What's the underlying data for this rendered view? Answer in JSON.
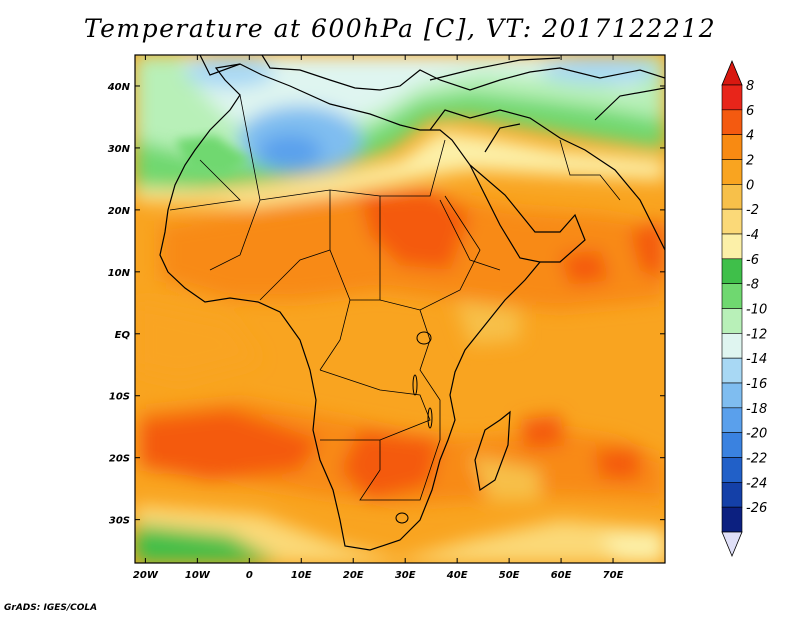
{
  "title": "Temperature at 600hPa [C], VT: 2017122212",
  "footer": "GrADS: IGES/COLA",
  "map": {
    "lon_ticks": [
      "20W",
      "10W",
      "0",
      "10E",
      "20E",
      "30E",
      "40E",
      "50E",
      "60E",
      "70E"
    ],
    "lat_ticks": [
      "40N",
      "30N",
      "20N",
      "10N",
      "EQ",
      "10S",
      "20S",
      "30S"
    ],
    "lon_range": [
      -22,
      80
    ],
    "lat_range": [
      -37,
      45
    ]
  },
  "colorbar": {
    "labels": [
      "8",
      "6",
      "4",
      "2",
      "0",
      "-2",
      "-4",
      "-6",
      "-8",
      "-10",
      "-12",
      "-14",
      "-16",
      "-18",
      "-20",
      "-22",
      "-24",
      "-26"
    ],
    "colors": [
      "#e8251a",
      "#f45a10",
      "#f88a12",
      "#f9a420",
      "#f7c04a",
      "#fbd978",
      "#fcf0a8",
      "#3fbf4a",
      "#6fd870",
      "#b8f0b8",
      "#dff5f0",
      "#a8d8f4",
      "#7fbdf0",
      "#5aa0ec",
      "#3a82e0",
      "#2160c8",
      "#1440a8",
      "#0c2080"
    ],
    "top_arrow_color": "#d81810",
    "bottom_arrow_color": "#e0e0f8"
  }
}
